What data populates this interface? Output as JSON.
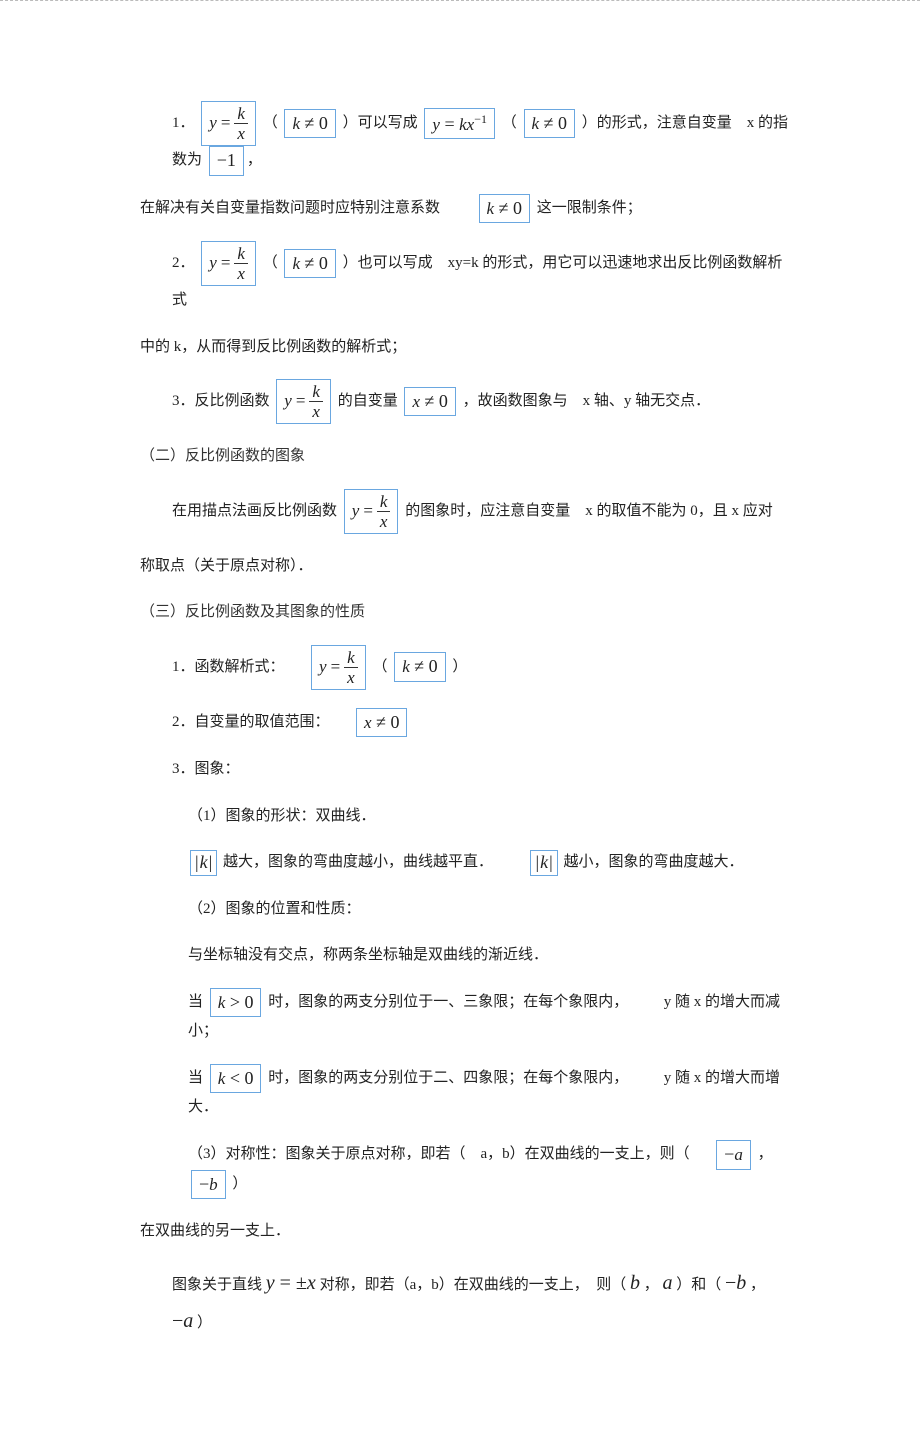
{
  "lines": {
    "p1a": "1．",
    "p1b": "（",
    "p1c": "）可以写成 ",
    "p1d": "（",
    "p1e": "）的形式，注意自变量　x 的指数为 ",
    "p1f": "，",
    "p2": "在解决有关自变量指数问题时应特别注意系数",
    "p2b": "这一限制条件；",
    "p3a": "2．",
    "p3b": "（",
    "p3c": "）也可以写成　xy=k 的形式，用它可以迅速地求出反比例函数解析式",
    "p4": "中的 k，从而得到反比例函数的解析式；",
    "p5a": "3．反比例函数 ",
    "p5b": "的自变量 ",
    "p5c": "，故函数图象与　x 轴、y 轴无交点．",
    "s2": "（二）反比例函数的图象",
    "p6a": "在用描点法画反比例函数 ",
    "p6b": "的图象时，应注意自变量　x 的取值不能为 0，且 x 应对",
    "p7": "称取点（关于原点对称）．",
    "s3": "（三）反比例函数及其图象的性质",
    "p8a": "1．函数解析式：",
    "p8b": "（",
    "p8c": "）",
    "p9a": "2．自变量的取值范围：",
    "p10": "3．图象：",
    "p11": "（1）图象的形状：双曲线．",
    "p12a": "越大，图象的弯曲度越小，曲线越平直．",
    "p12b": "越小，图象的弯曲度越大．",
    "p13": "（2）图象的位置和性质：",
    "p14": "与坐标轴没有交点，称两条坐标轴是双曲线的渐近线．",
    "p15a": "当",
    "p15b": "时，图象的两支分别位于一、三象限；在每个象限内，",
    "p15c": "y 随 x 的增大而减小；",
    "p16a": "当",
    "p16b": "时，图象的两支分别位于二、四象限；在每个象限内，",
    "p16c": "y 随 x 的增大而增大．",
    "p17a": "（3）对称性：图象关于原点对称，即若（　a，b）在双曲线的一支上，则（",
    "p17b": "，",
    "p17c": "）",
    "p18": "在双曲线的另一支上．",
    "p19a": "图象关于直线 ",
    "p19b": " 对称，即若（a，b）在双曲线的一支上，　则（",
    "p19c": "，",
    "p19d": "）和（",
    "p19e": "，",
    "p19f": "）"
  },
  "math": {
    "y_eq": "y",
    "eq": "=",
    "k": "k",
    "x": "x",
    "k_ne_0": "k ≠ 0",
    "x_ne_0": "x ≠ 0",
    "neg1": "−1",
    "kx_inv": "y = kx",
    "exp_neg1": "−1",
    "k_gt_0": "k > 0",
    "k_lt_0": "k < 0",
    "neg_a": "−a",
    "neg_b": "−b",
    "b": "b",
    "a": "a",
    "y_eq_pm_x": "y = ±x"
  },
  "colors": {
    "box_border": "#6aa7e0",
    "text": "#222222",
    "bg": "#ffffff"
  }
}
